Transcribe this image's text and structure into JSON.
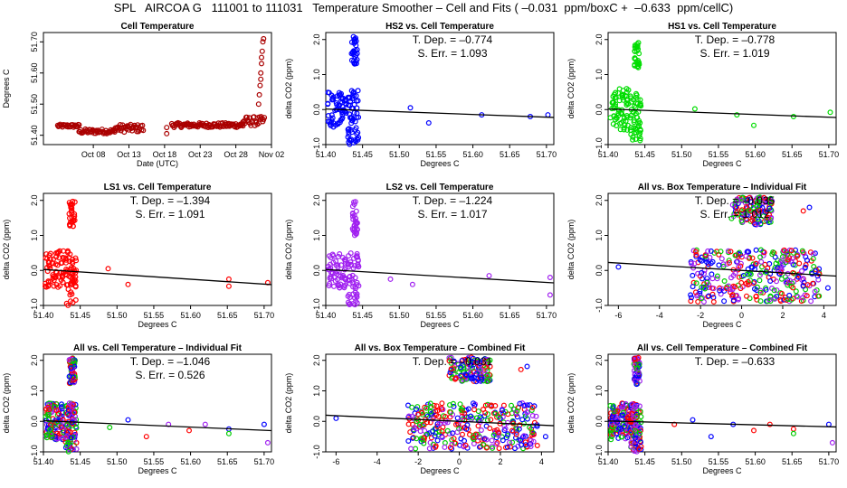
{
  "title": "SPL   AIRCOA G   111001 to 111031   Temperature Smoother – Cell and Fits ( –0.031  ppm/boxC +  –0.633  ppm/cellC)",
  "colors": {
    "HS2": "#0000ff",
    "HS1": "#00dd00",
    "LS1": "#ff0000",
    "LS2": "#a020f0",
    "cell": "#aa0000",
    "mix": [
      "#ff0000",
      "#0000ff",
      "#00cc00",
      "#a020f0"
    ]
  },
  "chart_data": [
    {
      "id": "cell",
      "type": "scatter",
      "title": "Cell Temperature",
      "xlabel": "Date (UTC)",
      "ylabel": "Degrees C",
      "xlim": [
        "2011-10-01",
        "2011-11-02"
      ],
      "ylim": [
        51.37,
        51.73
      ],
      "xticks": [
        "2011-10-08",
        "2011-10-13",
        "2011-10-18",
        "2011-10-23",
        "2011-10-28",
        "2011-11-02"
      ],
      "xticklabels": [
        "Oct 08",
        "Oct 13",
        "Oct 18",
        "Oct 23",
        "Oct 28",
        "Nov 02"
      ],
      "yticks": [
        51.4,
        51.5,
        51.6,
        51.7
      ],
      "yticklabels": [
        "51.40",
        "51.50",
        "51.60",
        "51.70"
      ],
      "series": [
        {
          "color": "#aa0000",
          "segments": [
            {
              "x_range": [
                "2011-10-03",
                "2011-10-06"
              ],
              "y_range": [
                51.425,
                51.435
              ]
            },
            {
              "x_range": [
                "2011-10-06",
                "2011-10-11"
              ],
              "y_range": [
                51.405,
                51.42
              ]
            },
            {
              "x_range": [
                "2011-10-11",
                "2011-10-15"
              ],
              "y_range": [
                51.41,
                51.435
              ]
            },
            {
              "x_range": [
                "2011-10-19",
                "2011-10-29"
              ],
              "y_range": [
                51.425,
                51.44
              ]
            },
            {
              "x_range": [
                "2011-10-29",
                "2011-11-01"
              ],
              "y_range": [
                51.43,
                51.46
              ]
            }
          ],
          "points": [
            {
              "x": "2011-10-18.3",
              "y": 51.405
            },
            {
              "x": "2011-10-18.3",
              "y": 51.425
            },
            {
              "x": "2011-10-31.2",
              "y": 51.5
            },
            {
              "x": "2011-10-31.3",
              "y": 51.53
            },
            {
              "x": "2011-10-31.4",
              "y": 51.56
            },
            {
              "x": "2011-10-31.5",
              "y": 51.6
            },
            {
              "x": "2011-10-31.6",
              "y": 51.63
            },
            {
              "x": "2011-10-31.7",
              "y": 51.67
            },
            {
              "x": "2011-10-31.8",
              "y": 51.7
            },
            {
              "x": "2011-10-31.9",
              "y": 51.71
            },
            {
              "x": "2011-10-31.5",
              "y": 51.58
            },
            {
              "x": "2011-10-31.6",
              "y": 51.65
            }
          ]
        }
      ]
    },
    {
      "id": "hs2",
      "type": "scatter",
      "title": "HS2 vs. Cell Temperature",
      "xlabel": "Degrees C",
      "ylabel": "delta CO2 (ppm)",
      "xlim": [
        51.4,
        51.71
      ],
      "ylim": [
        -1.0,
        2.2
      ],
      "xticks": [
        51.4,
        51.45,
        51.5,
        51.55,
        51.6,
        51.65,
        51.7
      ],
      "xticklabels": [
        "51.40",
        "51.45",
        "51.50",
        "51.55",
        "51.60",
        "51.65",
        "51.70"
      ],
      "yticks": [
        -1.0,
        0.0,
        1.0,
        2.0
      ],
      "yticklabels": [
        "-1.0",
        "0.0",
        "1.0",
        "2.0"
      ],
      "annotations": [
        "T. Dep. =  –0.774",
        "S. Err. =  1.093"
      ],
      "fit": {
        "slope": -0.774,
        "x0": 51.42,
        "y0": 0.0
      },
      "series": [
        {
          "name": "HS2",
          "color": "#0000ff",
          "clusters": [
            {
              "x_range": [
                51.402,
                51.428
              ],
              "y_range": [
                -0.5,
                0.5
              ]
            },
            {
              "x_range": [
                51.43,
                51.445
              ],
              "y_range": [
                -1.0,
                0.6
              ]
            },
            {
              "x_range": [
                51.435,
                51.443
              ],
              "y_range": [
                1.3,
                2.1
              ]
            }
          ],
          "points": [
            {
              "x": 51.515,
              "y": 0.05
            },
            {
              "x": 51.54,
              "y": -0.38
            },
            {
              "x": 51.612,
              "y": -0.15
            },
            {
              "x": 51.678,
              "y": -0.2
            },
            {
              "x": 51.702,
              "y": -0.15
            }
          ]
        }
      ]
    },
    {
      "id": "hs1",
      "type": "scatter",
      "title": "HS1 vs. Cell Temperature",
      "xlabel": "Degrees C",
      "ylabel": "delta CO2 (ppm)",
      "xlim": [
        51.4,
        51.71
      ],
      "ylim": [
        -1.0,
        2.2
      ],
      "xticks": [
        51.4,
        51.45,
        51.5,
        51.55,
        51.6,
        51.65,
        51.7
      ],
      "xticklabels": [
        "51.40",
        "51.45",
        "51.50",
        "51.55",
        "51.60",
        "51.65",
        "51.70"
      ],
      "yticks": [
        -1.0,
        0.0,
        1.0,
        2.0
      ],
      "yticklabels": [
        "-1.0",
        "0.0",
        "1.0",
        "2.0"
      ],
      "annotations": [
        "T. Dep. =  –0.778",
        "S. Err. =  1.019"
      ],
      "fit": {
        "slope": -0.778,
        "x0": 51.42,
        "y0": 0.0
      },
      "series": [
        {
          "name": "HS1",
          "color": "#00dd00",
          "clusters": [
            {
              "x_range": [
                51.403,
                51.428
              ],
              "y_range": [
                -0.6,
                0.6
              ]
            },
            {
              "x_range": [
                51.43,
                51.445
              ],
              "y_range": [
                -0.9,
                0.5
              ]
            },
            {
              "x_range": [
                51.436,
                51.443
              ],
              "y_range": [
                1.2,
                2.0
              ]
            }
          ],
          "points": [
            {
              "x": 51.518,
              "y": 0.02
            },
            {
              "x": 51.575,
              "y": -0.15
            },
            {
              "x": 51.598,
              "y": -0.45
            },
            {
              "x": 51.652,
              "y": -0.2
            },
            {
              "x": 51.702,
              "y": -0.08
            }
          ]
        }
      ]
    },
    {
      "id": "ls1",
      "type": "scatter",
      "title": "LS1 vs. Cell Temperature",
      "xlabel": "Degrees C",
      "ylabel": "delta CO2 (ppm)",
      "xlim": [
        51.4,
        51.71
      ],
      "ylim": [
        -1.0,
        2.2
      ],
      "xticks": [
        51.4,
        51.45,
        51.5,
        51.55,
        51.6,
        51.65,
        51.7
      ],
      "xticklabels": [
        "51.40",
        "51.45",
        "51.50",
        "51.55",
        "51.60",
        "51.65",
        "51.70"
      ],
      "yticks": [
        -1.0,
        0.0,
        1.0,
        2.0
      ],
      "yticklabels": [
        "-1.0",
        "0.0",
        "1.0",
        "2.0"
      ],
      "annotations": [
        "T. Dep. =  –1.394",
        "S. Err. =  1.091"
      ],
      "fit": {
        "slope": -1.394,
        "x0": 51.42,
        "y0": 0.0
      },
      "series": [
        {
          "name": "LS1",
          "color": "#ff0000",
          "clusters": [
            {
              "x_range": [
                51.402,
                51.428
              ],
              "y_range": [
                -0.5,
                0.6
              ]
            },
            {
              "x_range": [
                51.43,
                51.445
              ],
              "y_range": [
                -1.0,
                0.6
              ]
            },
            {
              "x_range": [
                51.435,
                51.443
              ],
              "y_range": [
                1.2,
                2.0
              ]
            }
          ],
          "points": [
            {
              "x": 51.488,
              "y": 0.05
            },
            {
              "x": 51.515,
              "y": -0.4
            },
            {
              "x": 51.652,
              "y": -0.25
            },
            {
              "x": 51.652,
              "y": -0.45
            },
            {
              "x": 51.705,
              "y": -0.35
            }
          ]
        }
      ]
    },
    {
      "id": "ls2",
      "type": "scatter",
      "title": "LS2 vs. Cell Temperature",
      "xlabel": "Degrees C",
      "ylabel": "delta CO2 (ppm)",
      "xlim": [
        51.4,
        51.71
      ],
      "ylim": [
        -1.0,
        2.2
      ],
      "xticks": [
        51.4,
        51.45,
        51.5,
        51.55,
        51.6,
        51.65,
        51.7
      ],
      "xticklabels": [
        "51.40",
        "51.45",
        "51.50",
        "51.55",
        "51.60",
        "51.65",
        "51.70"
      ],
      "yticks": [
        -1.0,
        0.0,
        1.0,
        2.0
      ],
      "yticklabels": [
        "-1.0",
        "0.0",
        "1.0",
        "2.0"
      ],
      "annotations": [
        "T. Dep. =  –1.224",
        "S. Err. =  1.017"
      ],
      "fit": {
        "slope": -1.224,
        "x0": 51.42,
        "y0": 0.0
      },
      "series": [
        {
          "name": "LS2",
          "color": "#a020f0",
          "clusters": [
            {
              "x_range": [
                51.403,
                51.428
              ],
              "y_range": [
                -0.5,
                0.5
              ]
            },
            {
              "x_range": [
                51.43,
                51.445
              ],
              "y_range": [
                -1.0,
                0.5
              ]
            },
            {
              "x_range": [
                51.436,
                51.443
              ],
              "y_range": [
                1.0,
                2.0
              ]
            }
          ],
          "points": [
            {
              "x": 51.488,
              "y": -0.25
            },
            {
              "x": 51.518,
              "y": -0.4
            },
            {
              "x": 51.622,
              "y": -0.15
            },
            {
              "x": 51.705,
              "y": -0.2
            },
            {
              "x": 51.705,
              "y": -0.7
            }
          ]
        }
      ]
    },
    {
      "id": "all-box-ind",
      "type": "scatter",
      "title": "All vs. Box Temperature – Individual Fit",
      "xlabel": "Degrees C",
      "ylabel": "delta CO2 (ppm)",
      "xlim": [
        -6.5,
        4.6
      ],
      "ylim": [
        -1.0,
        2.2
      ],
      "xticks": [
        -6,
        -4,
        -2,
        0,
        2,
        4
      ],
      "xticklabels": [
        "-6",
        "-4",
        "-2",
        "0",
        "2",
        "4"
      ],
      "yticks": [
        -1.0,
        0.0,
        1.0,
        2.0
      ],
      "yticklabels": [
        "-1.0",
        "0.0",
        "1.0",
        "2.0"
      ],
      "annotations": [
        "T. Dep. =  –0.035",
        "S. Err. =  1.012"
      ],
      "fit": {
        "slope": -0.035,
        "x0": 0.0,
        "y0": 0.0
      },
      "series": [
        {
          "name": "mix",
          "clusters": [
            {
              "x_range": [
                -2.5,
                3.8
              ],
              "y_range": [
                -0.9,
                0.6
              ]
            },
            {
              "x_range": [
                -0.5,
                1.5
              ],
              "y_range": [
                1.3,
                2.1
              ]
            }
          ],
          "points": [
            {
              "x": -6.0,
              "y": 0.1
            },
            {
              "x": 4.2,
              "y": -0.5
            },
            {
              "x": 3.0,
              "y": 1.7
            },
            {
              "x": 3.3,
              "y": 1.8
            }
          ]
        }
      ]
    },
    {
      "id": "all-cell-ind",
      "type": "scatter",
      "title": "All vs. Cell Temperature – Individual Fit",
      "xlabel": "Degrees C",
      "ylabel": "delta CO2 (ppm)",
      "xlim": [
        51.4,
        51.71
      ],
      "ylim": [
        -1.0,
        2.2
      ],
      "xticks": [
        51.4,
        51.45,
        51.5,
        51.55,
        51.6,
        51.65,
        51.7
      ],
      "xticklabels": [
        "51.40",
        "51.45",
        "51.50",
        "51.55",
        "51.60",
        "51.65",
        "51.70"
      ],
      "yticks": [
        -1.0,
        0.0,
        1.0,
        2.0
      ],
      "yticklabels": [
        "-1.0",
        "0.0",
        "1.0",
        "2.0"
      ],
      "annotations": [
        "T. Dep. =  –1.046",
        "S. Err. =  0.526"
      ],
      "fit": {
        "slope": -1.046,
        "x0": 51.42,
        "y0": 0.0
      },
      "series": [
        {
          "name": "mix",
          "clusters": [
            {
              "x_range": [
                51.403,
                51.428
              ],
              "y_range": [
                -0.6,
                0.6
              ]
            },
            {
              "x_range": [
                51.43,
                51.445
              ],
              "y_range": [
                -1.0,
                0.6
              ]
            },
            {
              "x_range": [
                51.435,
                51.443
              ],
              "y_range": [
                1.2,
                2.1
              ]
            }
          ],
          "points": [
            {
              "x": 51.49,
              "y": -0.2
            },
            {
              "x": 51.515,
              "y": 0.05
            },
            {
              "x": 51.54,
              "y": -0.5
            },
            {
              "x": 51.57,
              "y": -0.1
            },
            {
              "x": 51.598,
              "y": -0.3
            },
            {
              "x": 51.62,
              "y": -0.1
            },
            {
              "x": 51.652,
              "y": -0.25
            },
            {
              "x": 51.652,
              "y": -0.4
            },
            {
              "x": 51.7,
              "y": -0.1
            },
            {
              "x": 51.705,
              "y": -0.7
            }
          ]
        }
      ]
    },
    {
      "id": "all-box-comb",
      "type": "scatter",
      "title": "All vs. Box Temperature – Combined Fit",
      "xlabel": "Degrees C",
      "ylabel": "delta CO2 (ppm)",
      "xlim": [
        -6.5,
        4.6
      ],
      "ylim": [
        -1.0,
        2.2
      ],
      "xticks": [
        -6,
        -4,
        -2,
        0,
        2,
        4
      ],
      "xticklabels": [
        "-6",
        "-4",
        "-2",
        "0",
        "2",
        "4"
      ],
      "yticks": [
        -1.0,
        0.0,
        1.0,
        2.0
      ],
      "yticklabels": [
        "-1.0",
        "0.0",
        "1.0",
        "2.0"
      ],
      "annotations": [
        "T. Dep. =  –0.031"
      ],
      "fit": {
        "slope": -0.031,
        "x0": 0.0,
        "y0": 0.0
      },
      "series": [
        {
          "name": "mix",
          "clusters": [
            {
              "x_range": [
                -2.5,
                3.8
              ],
              "y_range": [
                -0.9,
                0.6
              ]
            },
            {
              "x_range": [
                -0.5,
                1.5
              ],
              "y_range": [
                1.3,
                2.1
              ]
            }
          ],
          "points": [
            {
              "x": -6.0,
              "y": 0.1
            },
            {
              "x": 4.2,
              "y": -0.5
            },
            {
              "x": 3.0,
              "y": 1.7
            },
            {
              "x": 3.3,
              "y": 1.8
            }
          ]
        }
      ]
    },
    {
      "id": "all-cell-comb",
      "type": "scatter",
      "title": "All vs. Cell Temperature – Combined Fit",
      "xlabel": "Degrees C",
      "ylabel": "delta CO2 (ppm)",
      "xlim": [
        51.4,
        51.71
      ],
      "ylim": [
        -1.0,
        2.2
      ],
      "xticks": [
        51.4,
        51.45,
        51.5,
        51.55,
        51.6,
        51.65,
        51.7
      ],
      "xticklabels": [
        "51.40",
        "51.45",
        "51.50",
        "51.55",
        "51.60",
        "51.65",
        "51.70"
      ],
      "yticks": [
        -1.0,
        0.0,
        1.0,
        2.0
      ],
      "yticklabels": [
        "-1.0",
        "0.0",
        "1.0",
        "2.0"
      ],
      "annotations": [
        "T. Dep. =  –0.633"
      ],
      "fit": {
        "slope": -0.633,
        "x0": 51.42,
        "y0": 0.0
      },
      "series": [
        {
          "name": "mix",
          "clusters": [
            {
              "x_range": [
                51.403,
                51.428
              ],
              "y_range": [
                -0.6,
                0.6
              ]
            },
            {
              "x_range": [
                51.43,
                51.445
              ],
              "y_range": [
                -1.0,
                0.6
              ]
            },
            {
              "x_range": [
                51.435,
                51.443
              ],
              "y_range": [
                1.2,
                2.1
              ]
            }
          ],
          "points": [
            {
              "x": 51.49,
              "y": -0.1
            },
            {
              "x": 51.515,
              "y": 0.05
            },
            {
              "x": 51.54,
              "y": -0.5
            },
            {
              "x": 51.57,
              "y": -0.1
            },
            {
              "x": 51.598,
              "y": -0.3
            },
            {
              "x": 51.62,
              "y": -0.1
            },
            {
              "x": 51.652,
              "y": -0.25
            },
            {
              "x": 51.652,
              "y": -0.4
            },
            {
              "x": 51.7,
              "y": -0.1
            },
            {
              "x": 51.705,
              "y": -0.7
            }
          ]
        }
      ]
    }
  ]
}
